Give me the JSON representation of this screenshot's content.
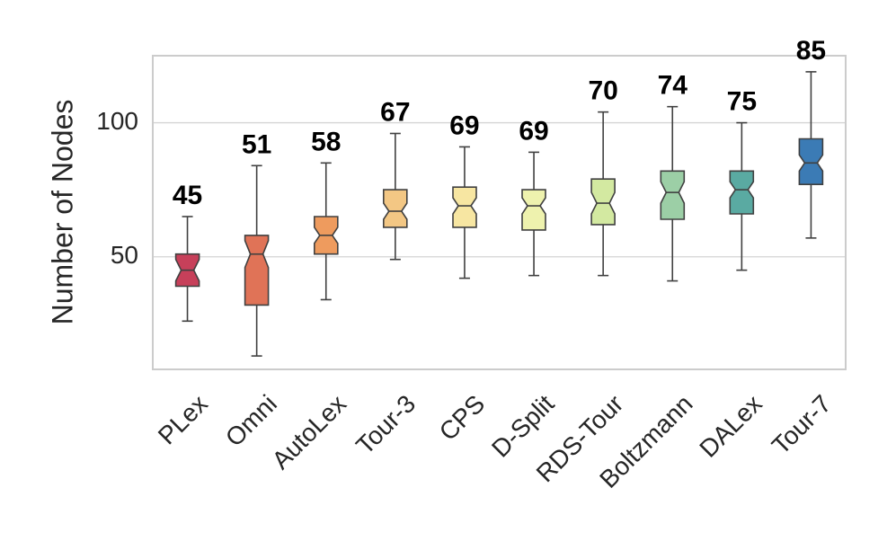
{
  "chart_data": {
    "type": "boxplot",
    "ylabel": "Number of Nodes",
    "xlabel": "",
    "ylim": [
      8,
      125
    ],
    "yticks": [
      50,
      100
    ],
    "grid": "horizontal",
    "notched": true,
    "categories": [
      "PLex",
      "Omni",
      "AutoLex",
      "Tour-3",
      "CPS",
      "D-Split",
      "RDS-Tour",
      "Boltzmann",
      "DALex",
      "Tour-7"
    ],
    "colors": [
      "#c7405a",
      "#e07357",
      "#ee9b5e",
      "#f3c784",
      "#f7e6a2",
      "#eef2ae",
      "#d3e9a1",
      "#9ccfa6",
      "#5aaaa2",
      "#3b7bb5"
    ],
    "median_labels": [
      "45",
      "51",
      "58",
      "67",
      "69",
      "69",
      "70",
      "74",
      "75",
      "85"
    ],
    "boxes": [
      {
        "whislo": 26,
        "q1": 39,
        "med": 45,
        "q3": 51,
        "whishi": 65,
        "notch_lo": 41,
        "notch_hi": 49
      },
      {
        "whislo": 13,
        "q1": 32,
        "med": 51,
        "q3": 58,
        "whishi": 84,
        "notch_lo": 46,
        "notch_hi": 56
      },
      {
        "whislo": 34,
        "q1": 51,
        "med": 58,
        "q3": 65,
        "whishi": 85,
        "notch_lo": 55,
        "notch_hi": 61
      },
      {
        "whislo": 49,
        "q1": 61,
        "med": 67,
        "q3": 75,
        "whishi": 96,
        "notch_lo": 64,
        "notch_hi": 70
      },
      {
        "whislo": 42,
        "q1": 61,
        "med": 69,
        "q3": 76,
        "whishi": 91,
        "notch_lo": 66,
        "notch_hi": 72
      },
      {
        "whislo": 43,
        "q1": 60,
        "med": 69,
        "q3": 75,
        "whishi": 89,
        "notch_lo": 66,
        "notch_hi": 72
      },
      {
        "whislo": 43,
        "q1": 62,
        "med": 70,
        "q3": 79,
        "whishi": 104,
        "notch_lo": 66,
        "notch_hi": 74
      },
      {
        "whislo": 41,
        "q1": 64,
        "med": 74,
        "q3": 82,
        "whishi": 106,
        "notch_lo": 70,
        "notch_hi": 78
      },
      {
        "whislo": 45,
        "q1": 66,
        "med": 75,
        "q3": 82,
        "whishi": 100,
        "notch_lo": 72,
        "notch_hi": 78
      },
      {
        "whislo": 57,
        "q1": 77,
        "med": 85,
        "q3": 94,
        "whishi": 119,
        "notch_lo": 82,
        "notch_hi": 88
      }
    ]
  }
}
